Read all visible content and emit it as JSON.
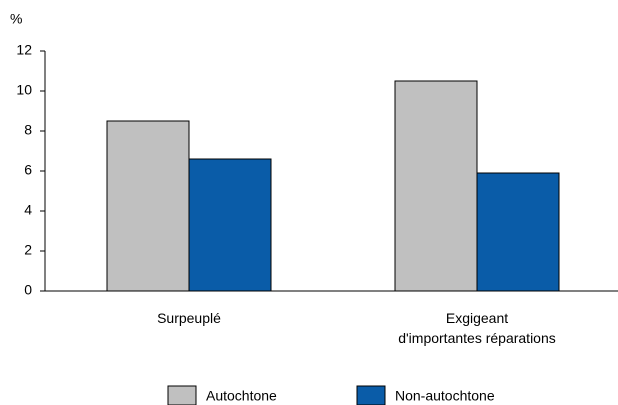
{
  "chart_data": {
    "type": "bar",
    "y_label": "%",
    "categories": [
      "Surpeuplé",
      "Exgigeant\nd'importantes réparations"
    ],
    "series": [
      {
        "name": "Autochtone",
        "color": "#c0c0c0",
        "values": [
          8.5,
          10.5
        ]
      },
      {
        "name": "Non-autochtone",
        "color": "#0a5ca8",
        "values": [
          6.6,
          5.9
        ]
      }
    ],
    "ylim": [
      0,
      12
    ],
    "yticks": [
      0,
      2,
      4,
      6,
      8,
      10,
      12
    ],
    "grid": false,
    "legend": "bottom"
  }
}
